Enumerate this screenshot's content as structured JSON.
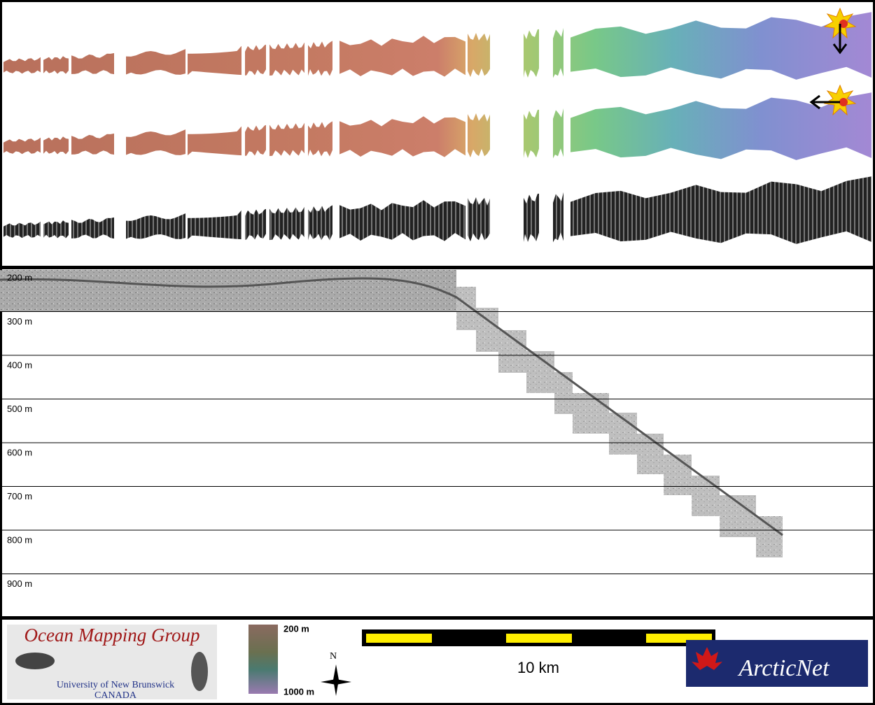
{
  "depth_profile": {
    "labels": [
      "200 m",
      "300 m",
      "400 m",
      "500 m",
      "600 m",
      "700 m",
      "800 m",
      "900 m"
    ]
  },
  "colorbar": {
    "top_label": "200 m",
    "bottom_label": "1000 m"
  },
  "compass": {
    "label": "N"
  },
  "scale_bar": {
    "label": "10 km"
  },
  "logos": {
    "omg_title": "Ocean Mapping Group",
    "omg_university": "University of New Brunswick",
    "omg_country": "CANADA",
    "arcticnet": "ArcticNet"
  }
}
